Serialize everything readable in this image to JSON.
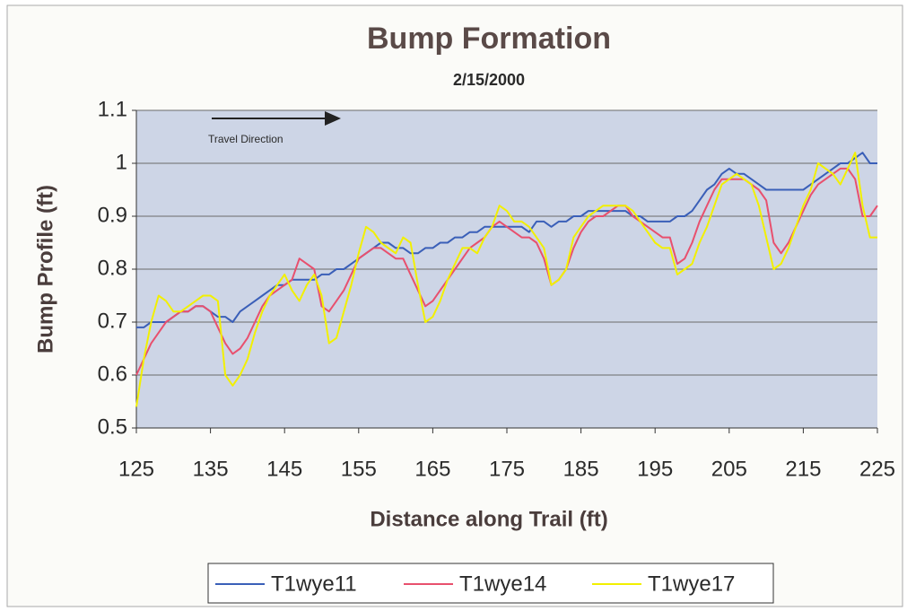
{
  "chart_data": {
    "type": "line",
    "title": "Bump Formation",
    "subtitle": "2/15/2000",
    "x_label": "Distance along Trail (ft)",
    "y_label": "Bump Profile (ft)",
    "annotation": "Travel Direction",
    "x": [
      125,
      126,
      127,
      128,
      129,
      130,
      131,
      132,
      133,
      134,
      135,
      136,
      137,
      138,
      139,
      140,
      141,
      142,
      143,
      144,
      145,
      146,
      147,
      148,
      149,
      150,
      151,
      152,
      153,
      154,
      155,
      156,
      157,
      158,
      159,
      160,
      161,
      162,
      163,
      164,
      165,
      166,
      167,
      168,
      169,
      170,
      171,
      172,
      173,
      174,
      175,
      176,
      177,
      178,
      179,
      180,
      181,
      182,
      183,
      184,
      185,
      186,
      187,
      188,
      189,
      190,
      191,
      192,
      193,
      194,
      195,
      196,
      197,
      198,
      199,
      200,
      201,
      202,
      203,
      204,
      205,
      206,
      207,
      208,
      209,
      210,
      211,
      212,
      213,
      214,
      215,
      216,
      217,
      218,
      219,
      220,
      221,
      222,
      223,
      224,
      225
    ],
    "series": [
      {
        "name": "T1wye11",
        "color": "#3a5fb8",
        "values": [
          0.69,
          0.69,
          0.7,
          0.7,
          0.7,
          0.71,
          0.72,
          0.72,
          0.73,
          0.73,
          0.72,
          0.71,
          0.71,
          0.7,
          0.72,
          0.73,
          0.74,
          0.75,
          0.76,
          0.77,
          0.77,
          0.78,
          0.78,
          0.78,
          0.78,
          0.79,
          0.79,
          0.8,
          0.8,
          0.81,
          0.82,
          0.83,
          0.84,
          0.85,
          0.85,
          0.84,
          0.84,
          0.83,
          0.83,
          0.84,
          0.84,
          0.85,
          0.85,
          0.86,
          0.86,
          0.87,
          0.87,
          0.88,
          0.88,
          0.88,
          0.88,
          0.88,
          0.88,
          0.87,
          0.89,
          0.89,
          0.88,
          0.89,
          0.89,
          0.9,
          0.9,
          0.91,
          0.91,
          0.91,
          0.91,
          0.91,
          0.91,
          0.9,
          0.9,
          0.89,
          0.89,
          0.89,
          0.89,
          0.9,
          0.9,
          0.91,
          0.93,
          0.95,
          0.96,
          0.98,
          0.99,
          0.98,
          0.98,
          0.97,
          0.96,
          0.95,
          0.95,
          0.95,
          0.95,
          0.95,
          0.95,
          0.96,
          0.97,
          0.98,
          0.99,
          1.0,
          1.0,
          1.01,
          1.02,
          1.0,
          1.0
        ]
      },
      {
        "name": "T1wye14",
        "color": "#e8506e",
        "values": [
          0.6,
          0.63,
          0.66,
          0.68,
          0.7,
          0.71,
          0.72,
          0.72,
          0.73,
          0.73,
          0.72,
          0.69,
          0.66,
          0.64,
          0.65,
          0.67,
          0.7,
          0.73,
          0.75,
          0.76,
          0.77,
          0.78,
          0.82,
          0.81,
          0.8,
          0.73,
          0.72,
          0.74,
          0.76,
          0.79,
          0.82,
          0.83,
          0.84,
          0.84,
          0.83,
          0.82,
          0.82,
          0.79,
          0.76,
          0.73,
          0.74,
          0.76,
          0.78,
          0.8,
          0.82,
          0.84,
          0.85,
          0.86,
          0.88,
          0.89,
          0.88,
          0.87,
          0.86,
          0.86,
          0.85,
          0.82,
          0.77,
          0.78,
          0.8,
          0.84,
          0.87,
          0.89,
          0.9,
          0.9,
          0.91,
          0.92,
          0.92,
          0.9,
          0.89,
          0.88,
          0.87,
          0.86,
          0.86,
          0.81,
          0.82,
          0.85,
          0.89,
          0.92,
          0.95,
          0.97,
          0.97,
          0.97,
          0.97,
          0.96,
          0.95,
          0.93,
          0.85,
          0.83,
          0.85,
          0.88,
          0.91,
          0.94,
          0.96,
          0.97,
          0.98,
          0.99,
          0.99,
          0.97,
          0.9,
          0.9,
          0.92
        ]
      },
      {
        "name": "T1wye17",
        "color": "#f2f000",
        "values": [
          0.54,
          0.63,
          0.7,
          0.75,
          0.74,
          0.72,
          0.72,
          0.73,
          0.74,
          0.75,
          0.75,
          0.74,
          0.6,
          0.58,
          0.6,
          0.63,
          0.68,
          0.72,
          0.75,
          0.77,
          0.79,
          0.76,
          0.74,
          0.77,
          0.79,
          0.75,
          0.66,
          0.67,
          0.72,
          0.77,
          0.83,
          0.88,
          0.87,
          0.85,
          0.84,
          0.83,
          0.86,
          0.85,
          0.77,
          0.7,
          0.71,
          0.74,
          0.78,
          0.81,
          0.84,
          0.84,
          0.83,
          0.86,
          0.88,
          0.92,
          0.91,
          0.89,
          0.89,
          0.88,
          0.86,
          0.84,
          0.77,
          0.78,
          0.8,
          0.86,
          0.88,
          0.9,
          0.91,
          0.92,
          0.92,
          0.92,
          0.92,
          0.91,
          0.89,
          0.87,
          0.85,
          0.84,
          0.84,
          0.79,
          0.8,
          0.81,
          0.85,
          0.88,
          0.92,
          0.96,
          0.97,
          0.98,
          0.97,
          0.96,
          0.92,
          0.86,
          0.8,
          0.81,
          0.84,
          0.88,
          0.92,
          0.95,
          1.0,
          0.99,
          0.98,
          0.96,
          0.99,
          1.02,
          0.92,
          0.86,
          0.86
        ]
      }
    ],
    "xlim": [
      125,
      225
    ],
    "xticks": [
      125,
      135,
      145,
      155,
      165,
      175,
      185,
      195,
      205,
      215,
      225
    ],
    "ylim": [
      0.5,
      1.1
    ],
    "yticks": [
      0.5,
      0.6,
      0.7,
      0.8,
      0.9,
      1,
      1.1
    ],
    "grid": true,
    "legend": "bottom"
  }
}
